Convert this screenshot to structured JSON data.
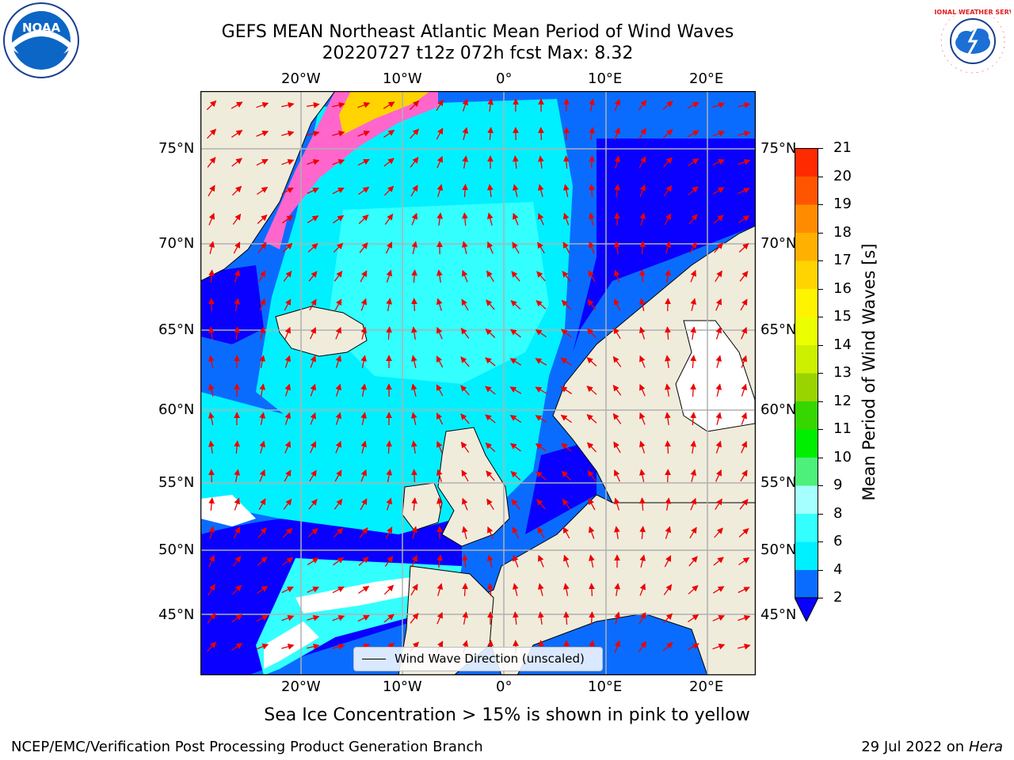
{
  "title": {
    "line1": "GEFS MEAN Northeast Atlantic Mean Period of Wind Waves",
    "line2": "20220727 t12z 072h fcst    Max: 8.32"
  },
  "map": {
    "lon_top": [
      "20°W",
      "10°W",
      "0°",
      "10°E",
      "20°E"
    ],
    "lon_bottom": [
      "20°W",
      "10°W",
      "0°",
      "10°E",
      "20°E"
    ],
    "lat_left": [
      "75°N",
      "70°N",
      "65°N",
      "60°N",
      "55°N",
      "50°N",
      "45°N"
    ],
    "lat_right": [
      "75°N",
      "70°N",
      "65°N",
      "60°N",
      "55°N",
      "50°N",
      "45°N"
    ],
    "legend_label": "Wind Wave Direction (unscaled)",
    "grid": true
  },
  "colorbar": {
    "label": "Mean Period of Wind Waves [s]",
    "ticks": [
      "2",
      "4",
      "6",
      "8",
      "9",
      "10",
      "11",
      "12",
      "13",
      "14",
      "15",
      "16",
      "17",
      "18",
      "19",
      "20",
      "21"
    ],
    "colors": [
      "#0a6cff",
      "#00f0ff",
      "#33ffff",
      "#a6ffff",
      "#4cf07a",
      "#00ee00",
      "#36d600",
      "#9ad400",
      "#ccf000",
      "#ecff00",
      "#fff400",
      "#ffd400",
      "#ffb000",
      "#ff8c00",
      "#ff5500",
      "#ff2a00",
      "#ff0000"
    ],
    "under_color": "#0a00ff"
  },
  "caption": "Sea Ice Concentration > 15% is shown in pink to yellow",
  "footer": {
    "left": "NCEP/EMC/Verification Post Processing Product Generation Branch",
    "right_prefix": "29 Jul 2022 on ",
    "right_host": "Hera"
  },
  "logos": {
    "noaa_text": "NOAA",
    "nws_text": "NATIONAL WEATHER SERVICE"
  }
}
